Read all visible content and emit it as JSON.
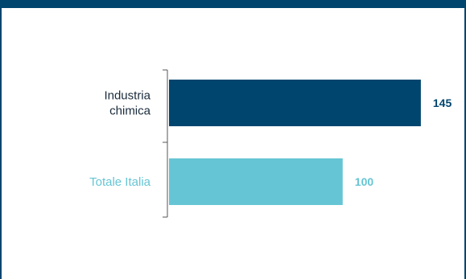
{
  "chart_data": {
    "type": "bar",
    "orientation": "horizontal",
    "categories": [
      "Industria chimica",
      "Totale Italia"
    ],
    "category_lines": [
      [
        "Industria",
        "chimica"
      ],
      [
        "Totale Italia"
      ]
    ],
    "values": [
      145,
      100
    ],
    "value_labels": [
      "145",
      "100"
    ],
    "colors": [
      "#00456e",
      "#66c5d4"
    ],
    "label_colors": [
      "#1a2b3c",
      "#66c5d4"
    ],
    "value_label_colors": [
      "#00456e",
      "#66c5d4"
    ],
    "title": "",
    "xlabel": "",
    "ylabel": "",
    "xlim": [
      0,
      190
    ],
    "grid": false
  },
  "colors": {
    "frame": "#00456e",
    "axis": "#555555"
  }
}
